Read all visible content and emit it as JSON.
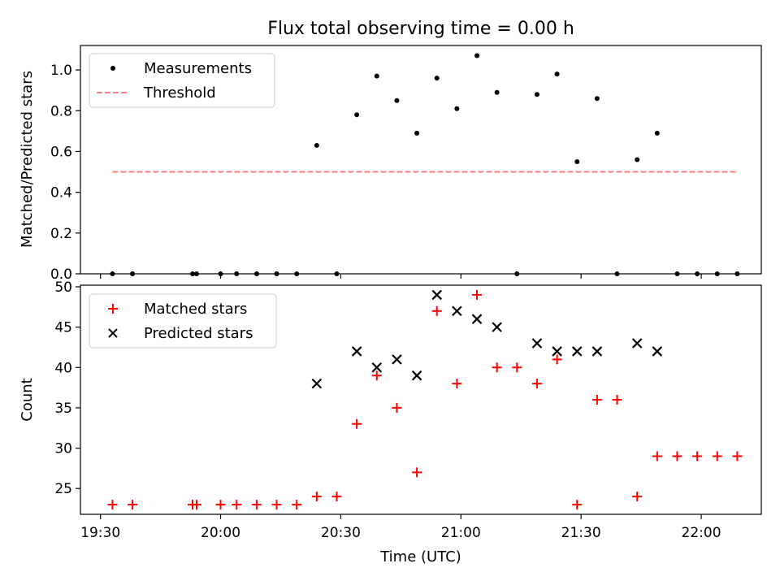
{
  "chart_data": [
    {
      "type": "scatter",
      "title": "Flux total observing time = 0.00 h",
      "xlabel": "",
      "ylabel": "Matched/Predicted stars",
      "xlim": [
        "19:25",
        "22:15"
      ],
      "ylim": [
        0,
        1.12
      ],
      "yticks": [
        0.0,
        0.2,
        0.4,
        0.6,
        0.8,
        1.0
      ],
      "ytick_labels": [
        "0.0",
        "0.2",
        "0.4",
        "0.6",
        "0.8",
        "1.0"
      ],
      "grid": false,
      "legend": "top-left",
      "colors": {
        "measurements": "#000000",
        "threshold": "#ff7f7f"
      },
      "series": [
        {
          "name": "Measurements",
          "marker": "dot",
          "points": [
            [
              "19:33",
              0.0
            ],
            [
              "19:38",
              0.0
            ],
            [
              "19:53",
              0.0
            ],
            [
              "19:54",
              0.0
            ],
            [
              "20:00",
              0.0
            ],
            [
              "20:04",
              0.0
            ],
            [
              "20:09",
              0.0
            ],
            [
              "20:14",
              0.0
            ],
            [
              "20:19",
              0.0
            ],
            [
              "20:24",
              0.63
            ],
            [
              "20:29",
              0.0
            ],
            [
              "20:34",
              0.78
            ],
            [
              "20:39",
              0.97
            ],
            [
              "20:44",
              0.85
            ],
            [
              "20:49",
              0.69
            ],
            [
              "20:54",
              0.96
            ],
            [
              "20:59",
              0.81
            ],
            [
              "21:04",
              1.07
            ],
            [
              "21:09",
              0.89
            ],
            [
              "21:14",
              0.0
            ],
            [
              "21:19",
              0.88
            ],
            [
              "21:24",
              0.98
            ],
            [
              "21:29",
              0.55
            ],
            [
              "21:34",
              0.86
            ],
            [
              "21:39",
              0.0
            ],
            [
              "21:44",
              0.56
            ],
            [
              "21:49",
              0.69
            ],
            [
              "21:54",
              0.0
            ],
            [
              "21:59",
              0.0
            ],
            [
              "22:04",
              0.0
            ],
            [
              "22:09",
              0.0
            ]
          ]
        },
        {
          "name": "Threshold",
          "style": "dashed",
          "points": [
            [
              "19:33",
              0.5
            ],
            [
              "22:09",
              0.5
            ]
          ]
        }
      ]
    },
    {
      "type": "scatter",
      "title": "",
      "xlabel": "Time (UTC)",
      "ylabel": "Count",
      "xlim": [
        "19:25",
        "22:15"
      ],
      "ylim": [
        21.8,
        50.2
      ],
      "xticks": [
        "19:30",
        "20:00",
        "20:30",
        "21:00",
        "21:30",
        "22:00"
      ],
      "xtick_labels": [
        "19:30",
        "20:00",
        "20:30",
        "21:00",
        "21:30",
        "22:00"
      ],
      "yticks": [
        25,
        30,
        35,
        40,
        45,
        50
      ],
      "ytick_labels": [
        "25",
        "30",
        "35",
        "40",
        "45",
        "50"
      ],
      "grid": false,
      "legend": "top-left",
      "colors": {
        "matched": "#ff0000",
        "predicted": "#000000"
      },
      "series": [
        {
          "name": "Matched stars",
          "marker": "plus",
          "points": [
            [
              "19:33",
              23
            ],
            [
              "19:38",
              23
            ],
            [
              "19:53",
              23
            ],
            [
              "19:54",
              23
            ],
            [
              "20:00",
              23
            ],
            [
              "20:04",
              23
            ],
            [
              "20:09",
              23
            ],
            [
              "20:14",
              23
            ],
            [
              "20:19",
              23
            ],
            [
              "20:24",
              24
            ],
            [
              "20:29",
              24
            ],
            [
              "20:34",
              33
            ],
            [
              "20:39",
              39
            ],
            [
              "20:44",
              35
            ],
            [
              "20:49",
              27
            ],
            [
              "20:54",
              47
            ],
            [
              "20:59",
              38
            ],
            [
              "21:04",
              49
            ],
            [
              "21:09",
              40
            ],
            [
              "21:14",
              40
            ],
            [
              "21:19",
              38
            ],
            [
              "21:24",
              41
            ],
            [
              "21:29",
              23
            ],
            [
              "21:34",
              36
            ],
            [
              "21:39",
              36
            ],
            [
              "21:44",
              24
            ],
            [
              "21:49",
              29
            ],
            [
              "21:54",
              29
            ],
            [
              "21:59",
              29
            ],
            [
              "22:04",
              29
            ],
            [
              "22:09",
              29
            ]
          ]
        },
        {
          "name": "Predicted stars",
          "marker": "x",
          "points": [
            [
              "20:24",
              38
            ],
            [
              "20:34",
              42
            ],
            [
              "20:39",
              40
            ],
            [
              "20:44",
              41
            ],
            [
              "20:49",
              39
            ],
            [
              "20:54",
              49
            ],
            [
              "20:59",
              47
            ],
            [
              "21:04",
              46
            ],
            [
              "21:09",
              45
            ],
            [
              "21:19",
              43
            ],
            [
              "21:24",
              42
            ],
            [
              "21:29",
              42
            ],
            [
              "21:34",
              42
            ],
            [
              "21:44",
              43
            ],
            [
              "21:49",
              42
            ]
          ]
        }
      ]
    }
  ]
}
